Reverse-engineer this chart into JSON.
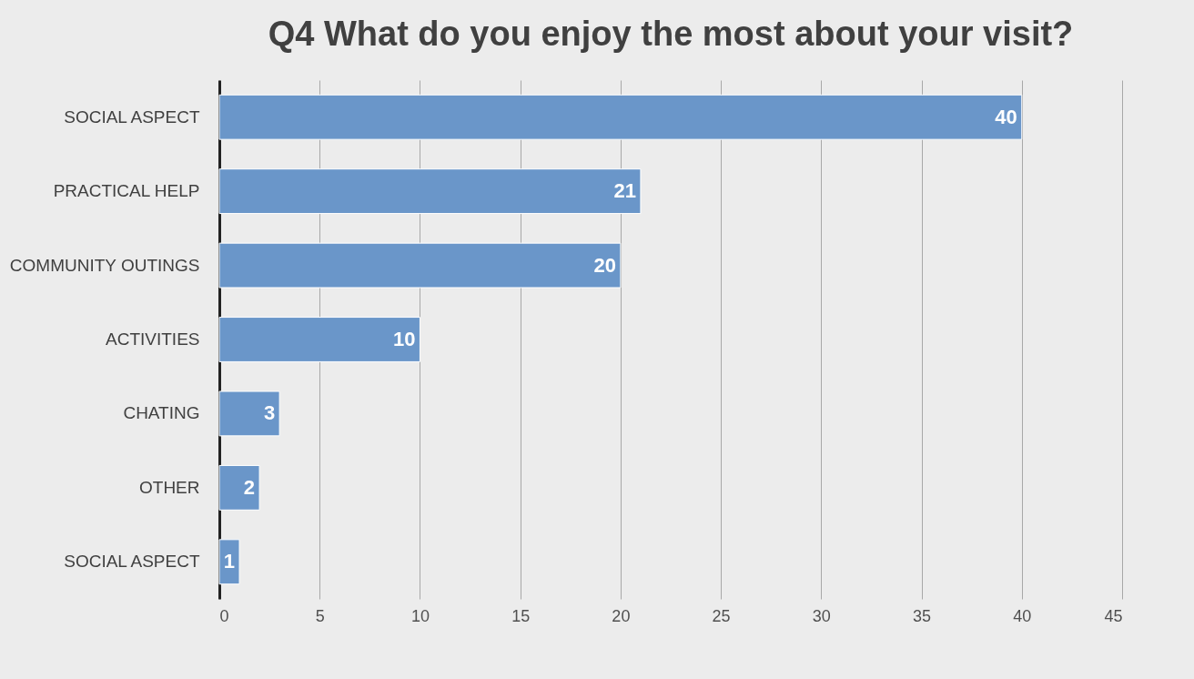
{
  "chart_data": {
    "type": "bar",
    "orientation": "horizontal",
    "title": "Q4 What do you enjoy the most about your visit?",
    "categories": [
      "SOCIAL ASPECT",
      "PRACTICAL HELP",
      "COMMUNITY OUTINGS",
      "ACTIVITIES",
      "CHATING",
      "OTHER",
      "SOCIAL ASPECT "
    ],
    "values": [
      40,
      21,
      20,
      10,
      3,
      2,
      1
    ],
    "color": "#6a96c9",
    "xlim": [
      0,
      45
    ],
    "xticks": [
      0,
      5,
      10,
      15,
      20,
      25,
      30,
      35,
      40,
      45
    ],
    "grid": "x",
    "data_labels": true
  }
}
